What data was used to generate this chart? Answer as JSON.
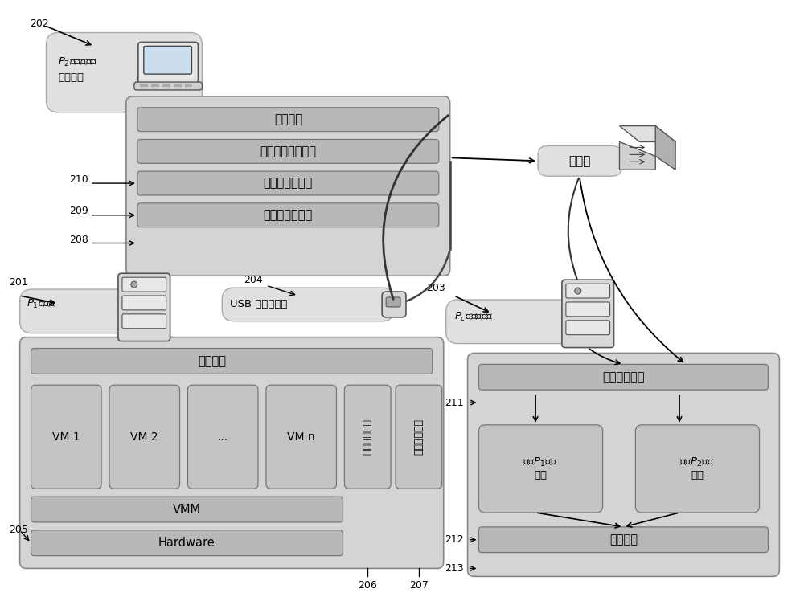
{
  "bg_color": "#ffffff",
  "outer_bg": "#d4d4d4",
  "inner_bar_bg": "#b8b8b8",
  "vm_box_bg": "#c4c4c4",
  "node_bg": "#e0e0e0",
  "text_network": "网络传输",
  "text_temp_data": "温度数据访问装置",
  "text_temp_manage": "温度计管理装置",
  "text_temp_drive": "温度计驱动装置",
  "text_vm1": "VM 1",
  "text_vm2": "VM 2",
  "text_dots": "...",
  "text_vmn": "VM n",
  "text_temp_monitor": "温度监控装置",
  "text_auto_control": "自动控制装置",
  "text_vmm": "VMM",
  "text_hardware": "Hardware",
  "text_lan": "局域网",
  "text_port_monitor": "端口监听装置",
  "text_integrate": "整合数据",
  "text_usb": "USB 温度计探头"
}
